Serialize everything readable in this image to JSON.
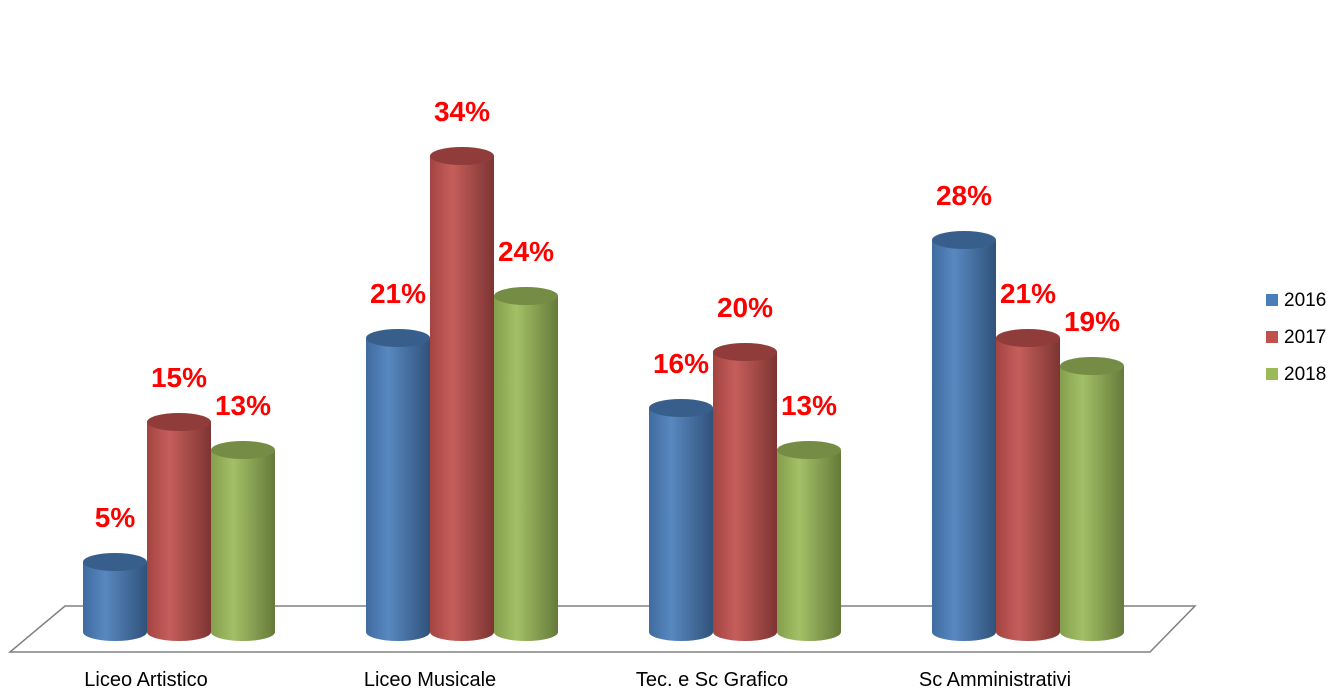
{
  "chart_data": {
    "type": "bar",
    "title": "",
    "xlabel": "",
    "ylabel": "",
    "categories": [
      "Liceo Artistico",
      "Liceo Musicale",
      "Tec. e Sc Grafico",
      "Sc Amministrativi"
    ],
    "series": [
      {
        "name": "2016",
        "values": [
          5,
          21,
          16,
          28
        ],
        "labels": [
          "5%",
          "21%",
          "16%",
          "28%"
        ],
        "color": "#4a7ebb"
      },
      {
        "name": "2017",
        "values": [
          15,
          34,
          20,
          21
        ],
        "labels": [
          "15%",
          "34%",
          "20%",
          "21%"
        ],
        "color": "#c0504d"
      },
      {
        "name": "2018",
        "values": [
          13,
          24,
          13,
          19
        ],
        "labels": [
          "13%",
          "24%",
          "13%",
          "19%"
        ],
        "color": "#9bbb59"
      }
    ],
    "ylim": [
      0,
      35
    ],
    "grid": false,
    "legend": "right",
    "label_color": "#ff0000"
  }
}
